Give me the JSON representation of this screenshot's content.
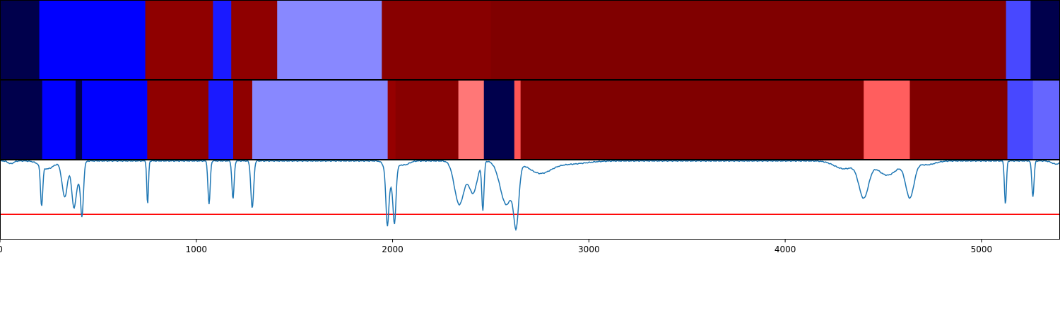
{
  "chart_data": {
    "type": "heatmap",
    "title": "",
    "xlabel": "",
    "ylabel": "",
    "xlim": [
      0,
      5400
    ],
    "x_ticks": [
      0,
      1000,
      2000,
      3000,
      4000,
      5000
    ],
    "x_tick_labels": [
      "0",
      "1000",
      "2000",
      "3000",
      "4000",
      "5000"
    ],
    "grid": false,
    "rows": [
      {
        "segments": [
          {
            "start": 0,
            "end": 200,
            "color": "#00004c"
          },
          {
            "start": 200,
            "end": 740,
            "color": "#0000ff"
          },
          {
            "start": 740,
            "end": 1085,
            "color": "#8f0000"
          },
          {
            "start": 1085,
            "end": 1178,
            "color": "#1a1aff"
          },
          {
            "start": 1178,
            "end": 1412,
            "color": "#8f0000"
          },
          {
            "start": 1412,
            "end": 1945,
            "color": "#8888ff"
          },
          {
            "start": 1945,
            "end": 2500,
            "color": "#880000"
          },
          {
            "start": 2500,
            "end": 5125,
            "color": "#800000"
          },
          {
            "start": 5125,
            "end": 5250,
            "color": "#4848ff"
          },
          {
            "start": 5250,
            "end": 5400,
            "color": "#00004c"
          }
        ]
      },
      {
        "segments": [
          {
            "start": 0,
            "end": 215,
            "color": "#00004c"
          },
          {
            "start": 215,
            "end": 385,
            "color": "#0000ff"
          },
          {
            "start": 385,
            "end": 418,
            "color": "#00004c"
          },
          {
            "start": 418,
            "end": 750,
            "color": "#0000ff"
          },
          {
            "start": 750,
            "end": 1062,
            "color": "#8f0000"
          },
          {
            "start": 1062,
            "end": 1188,
            "color": "#1a1aff"
          },
          {
            "start": 1188,
            "end": 1285,
            "color": "#8f0000"
          },
          {
            "start": 1285,
            "end": 1975,
            "color": "#8888ff"
          },
          {
            "start": 1975,
            "end": 2015,
            "color": "#960000"
          },
          {
            "start": 2015,
            "end": 2335,
            "color": "#880000"
          },
          {
            "start": 2335,
            "end": 2465,
            "color": "#ff7777"
          },
          {
            "start": 2465,
            "end": 2620,
            "color": "#00004c"
          },
          {
            "start": 2620,
            "end": 2652,
            "color": "#ff5555"
          },
          {
            "start": 2652,
            "end": 4400,
            "color": "#800000"
          },
          {
            "start": 4400,
            "end": 4635,
            "color": "#ff5e5e"
          },
          {
            "start": 4635,
            "end": 5132,
            "color": "#800000"
          },
          {
            "start": 5132,
            "end": 5262,
            "color": "#4848ff"
          },
          {
            "start": 5262,
            "end": 5400,
            "color": "#6666ff"
          }
        ]
      }
    ],
    "line_panel": {
      "ylim": [
        0,
        1
      ],
      "threshold": 0.31,
      "threshold_color": "#ff0000",
      "series_color": "#1f77b4",
      "baseline": 0.985,
      "dips": [
        {
          "x": 55,
          "depth": 0.035,
          "width": 20
        },
        {
          "x": 212,
          "depth": 0.5,
          "width": 8
        },
        {
          "x": 240,
          "depth": 0.1,
          "width": 50
        },
        {
          "x": 330,
          "depth": 0.45,
          "width": 20
        },
        {
          "x": 375,
          "depth": 0.45,
          "width": 15
        },
        {
          "x": 418,
          "depth": 0.6,
          "width": 10
        },
        {
          "x": 395,
          "depth": 0.25,
          "width": 25
        },
        {
          "x": 752,
          "depth": 0.55,
          "width": 6
        },
        {
          "x": 1065,
          "depth": 0.55,
          "width": 8
        },
        {
          "x": 1187,
          "depth": 0.48,
          "width": 8
        },
        {
          "x": 1285,
          "depth": 0.6,
          "width": 10
        },
        {
          "x": 1973,
          "depth": 0.6,
          "width": 10
        },
        {
          "x": 2010,
          "depth": 0.6,
          "width": 10
        },
        {
          "x": 1990,
          "depth": 0.3,
          "width": 30
        },
        {
          "x": 2060,
          "depth": 0.05,
          "width": 35
        },
        {
          "x": 2340,
          "depth": 0.55,
          "width": 35
        },
        {
          "x": 2410,
          "depth": 0.4,
          "width": 30
        },
        {
          "x": 2460,
          "depth": 0.6,
          "width": 8
        },
        {
          "x": 2580,
          "depth": 0.55,
          "width": 45
        },
        {
          "x": 2630,
          "depth": 0.68,
          "width": 18
        },
        {
          "x": 2750,
          "depth": 0.15,
          "width": 80
        },
        {
          "x": 2900,
          "depth": 0.04,
          "width": 120
        },
        {
          "x": 4300,
          "depth": 0.1,
          "width": 70
        },
        {
          "x": 4400,
          "depth": 0.45,
          "width": 35
        },
        {
          "x": 4520,
          "depth": 0.18,
          "width": 70
        },
        {
          "x": 4635,
          "depth": 0.45,
          "width": 30
        },
        {
          "x": 4720,
          "depth": 0.05,
          "width": 60
        },
        {
          "x": 5122,
          "depth": 0.55,
          "width": 7
        },
        {
          "x": 5262,
          "depth": 0.45,
          "width": 8
        },
        {
          "x": 5380,
          "depth": 0.04,
          "width": 30
        }
      ]
    }
  }
}
